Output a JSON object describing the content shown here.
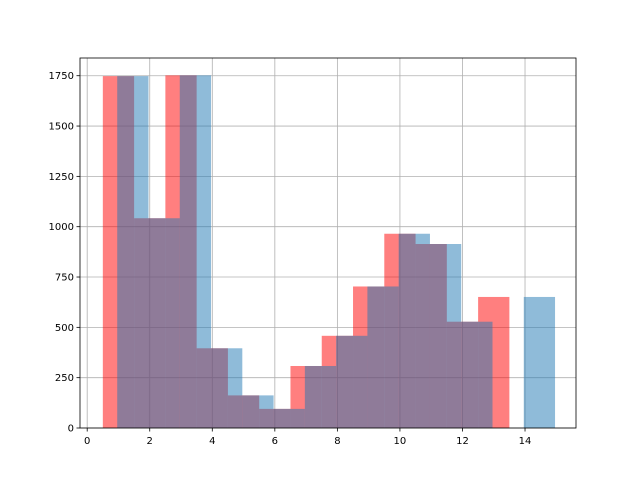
{
  "chart_data": {
    "type": "bar",
    "title": "",
    "xlabel": "",
    "ylabel": "",
    "xlim": [
      -0.23,
      15.63
    ],
    "ylim": [
      0,
      1838
    ],
    "grid": true,
    "legend": "none",
    "x_ticks": [
      0,
      2,
      4,
      6,
      8,
      10,
      12,
      14
    ],
    "y_ticks": [
      0,
      250,
      500,
      750,
      1000,
      1250,
      1500,
      1750
    ],
    "bin_width": 1.0,
    "series": [
      {
        "color": "#ff0000",
        "opacity": 0.5,
        "bin_starts": [
          0.5,
          1.5,
          2.5,
          3.5,
          4.5,
          5.5,
          6.5,
          7.5,
          8.5,
          9.5,
          10.5,
          11.5,
          12.5,
          13.5
        ],
        "values": [
          1748,
          1042,
          1752,
          396,
          162,
          95,
          308,
          458,
          703,
          965,
          914,
          528,
          651,
          0
        ]
      },
      {
        "color": "#1f77b4",
        "opacity": 0.5,
        "bin_starts": [
          0.96,
          1.96,
          2.96,
          3.96,
          4.96,
          5.96,
          6.96,
          7.96,
          8.96,
          9.96,
          10.96,
          11.96,
          12.96,
          13.96
        ],
        "values": [
          1748,
          1042,
          1752,
          396,
          162,
          95,
          308,
          458,
          703,
          965,
          914,
          528,
          0,
          651
        ]
      }
    ]
  }
}
